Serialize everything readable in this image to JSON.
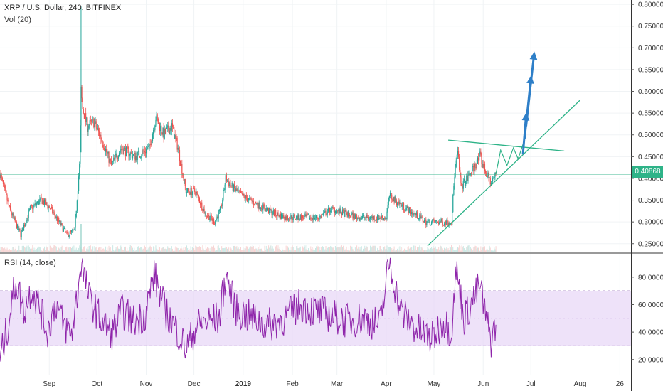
{
  "header": {
    "title": "XRP / U.S. Dollar, 240, BITFINEX",
    "vol_label": "Vol (20)",
    "rsi_label": "RSI (14, close)",
    "current_price": "0.40868"
  },
  "colors": {
    "candle_up": "#26a69a",
    "candle_down": "#ef5350",
    "trendline": "#2eb388",
    "projection": "#2e7fc8",
    "rsi_line": "#8e24aa",
    "rsi_band": "#e7d6f7"
  },
  "chart_data": [
    {
      "type": "candlestick",
      "title": "XRP / U.S. Dollar, 240, BITFINEX",
      "x_ticks": [
        "Sep",
        "Oct",
        "Nov",
        "Dec",
        "2019",
        "Feb",
        "Mar",
        "Apr",
        "May",
        "Jun",
        "Jul",
        "Aug",
        "26"
      ],
      "y_ticks": [
        "0.80000",
        "0.75000",
        "0.70000",
        "0.65000",
        "0.60000",
        "0.55000",
        "0.50000",
        "0.45000",
        "0.40000",
        "0.35000",
        "0.30000",
        "0.25000"
      ],
      "ylim": [
        0.23,
        0.81
      ],
      "last_price": 0.40868,
      "price_path": [
        {
          "x": "2018-08-01",
          "y": 0.41
        },
        {
          "x": "2018-08-07",
          "y": 0.33
        },
        {
          "x": "2018-08-14",
          "y": 0.27
        },
        {
          "x": "2018-08-20",
          "y": 0.33
        },
        {
          "x": "2018-08-27",
          "y": 0.35
        },
        {
          "x": "2018-09-02",
          "y": 0.33
        },
        {
          "x": "2018-09-07",
          "y": 0.3
        },
        {
          "x": "2018-09-12",
          "y": 0.27
        },
        {
          "x": "2018-09-17",
          "y": 0.28
        },
        {
          "x": "2018-09-20",
          "y": 0.43
        },
        {
          "x": "2018-09-21",
          "y": 0.6
        },
        {
          "x": "2018-09-22",
          "y": 0.56
        },
        {
          "x": "2018-09-25",
          "y": 0.52
        },
        {
          "x": "2018-09-29",
          "y": 0.53
        },
        {
          "x": "2018-10-04",
          "y": 0.49
        },
        {
          "x": "2018-10-10",
          "y": 0.43
        },
        {
          "x": "2018-10-16",
          "y": 0.47
        },
        {
          "x": "2018-10-25",
          "y": 0.45
        },
        {
          "x": "2018-11-03",
          "y": 0.47
        },
        {
          "x": "2018-11-07",
          "y": 0.54
        },
        {
          "x": "2018-11-12",
          "y": 0.5
        },
        {
          "x": "2018-11-17",
          "y": 0.52
        },
        {
          "x": "2018-11-21",
          "y": 0.47
        },
        {
          "x": "2018-11-26",
          "y": 0.37
        },
        {
          "x": "2018-12-02",
          "y": 0.37
        },
        {
          "x": "2018-12-08",
          "y": 0.32
        },
        {
          "x": "2018-12-14",
          "y": 0.3
        },
        {
          "x": "2018-12-18",
          "y": 0.33
        },
        {
          "x": "2018-12-21",
          "y": 0.4
        },
        {
          "x": "2018-12-25",
          "y": 0.38
        },
        {
          "x": "2018-12-31",
          "y": 0.36
        },
        {
          "x": "2019-01-10",
          "y": 0.34
        },
        {
          "x": "2019-01-20",
          "y": 0.32
        },
        {
          "x": "2019-01-28",
          "y": 0.31
        },
        {
          "x": "2019-02-08",
          "y": 0.31
        },
        {
          "x": "2019-02-18",
          "y": 0.31
        },
        {
          "x": "2019-02-25",
          "y": 0.33
        },
        {
          "x": "2019-03-05",
          "y": 0.32
        },
        {
          "x": "2019-03-15",
          "y": 0.31
        },
        {
          "x": "2019-03-25",
          "y": 0.31
        },
        {
          "x": "2019-04-01",
          "y": 0.31
        },
        {
          "x": "2019-04-03",
          "y": 0.36
        },
        {
          "x": "2019-04-10",
          "y": 0.34
        },
        {
          "x": "2019-04-18",
          "y": 0.32
        },
        {
          "x": "2019-04-26",
          "y": 0.3
        },
        {
          "x": "2019-05-05",
          "y": 0.3
        },
        {
          "x": "2019-05-12",
          "y": 0.3
        },
        {
          "x": "2019-05-14",
          "y": 0.41
        },
        {
          "x": "2019-05-16",
          "y": 0.46
        },
        {
          "x": "2019-05-18",
          "y": 0.38
        },
        {
          "x": "2019-05-22",
          "y": 0.4
        },
        {
          "x": "2019-05-27",
          "y": 0.43
        },
        {
          "x": "2019-05-30",
          "y": 0.45
        },
        {
          "x": "2019-06-03",
          "y": 0.41
        },
        {
          "x": "2019-06-06",
          "y": 0.39
        },
        {
          "x": "2019-06-09",
          "y": 0.40868
        }
      ],
      "volume_shown": true
    },
    {
      "type": "line",
      "title": "RSI (14, close)",
      "y_ticks": [
        "80.0000",
        "60.0000",
        "40.0000",
        "20.0000"
      ],
      "ylim": [
        9,
        97
      ],
      "band": [
        30,
        70
      ],
      "rsi_path": [
        {
          "x": "2018-08-01",
          "y": 20
        },
        {
          "x": "2018-08-06",
          "y": 45
        },
        {
          "x": "2018-08-11",
          "y": 78
        },
        {
          "x": "2018-08-16",
          "y": 55
        },
        {
          "x": "2018-08-21",
          "y": 72
        },
        {
          "x": "2018-08-26",
          "y": 58
        },
        {
          "x": "2018-08-31",
          "y": 40
        },
        {
          "x": "2018-09-05",
          "y": 62
        },
        {
          "x": "2018-09-10",
          "y": 45
        },
        {
          "x": "2018-09-15",
          "y": 38
        },
        {
          "x": "2018-09-19",
          "y": 70
        },
        {
          "x": "2018-09-21",
          "y": 92
        },
        {
          "x": "2018-09-26",
          "y": 65
        },
        {
          "x": "2018-10-03",
          "y": 50
        },
        {
          "x": "2018-10-10",
          "y": 38
        },
        {
          "x": "2018-10-17",
          "y": 55
        },
        {
          "x": "2018-10-24",
          "y": 48
        },
        {
          "x": "2018-10-31",
          "y": 52
        },
        {
          "x": "2018-11-06",
          "y": 82
        },
        {
          "x": "2018-11-13",
          "y": 55
        },
        {
          "x": "2018-11-20",
          "y": 42
        },
        {
          "x": "2018-11-26",
          "y": 28
        },
        {
          "x": "2018-12-03",
          "y": 45
        },
        {
          "x": "2018-12-10",
          "y": 48
        },
        {
          "x": "2018-12-17",
          "y": 50
        },
        {
          "x": "2018-12-21",
          "y": 82
        },
        {
          "x": "2018-12-28",
          "y": 55
        },
        {
          "x": "2019-01-07",
          "y": 50
        },
        {
          "x": "2019-01-17",
          "y": 45
        },
        {
          "x": "2019-01-27",
          "y": 50
        },
        {
          "x": "2019-02-06",
          "y": 60
        },
        {
          "x": "2019-02-16",
          "y": 55
        },
        {
          "x": "2019-02-26",
          "y": 52
        },
        {
          "x": "2019-03-08",
          "y": 48
        },
        {
          "x": "2019-03-18",
          "y": 50
        },
        {
          "x": "2019-03-28",
          "y": 45
        },
        {
          "x": "2019-04-03",
          "y": 92
        },
        {
          "x": "2019-04-10",
          "y": 55
        },
        {
          "x": "2019-04-20",
          "y": 42
        },
        {
          "x": "2019-04-30",
          "y": 35
        },
        {
          "x": "2019-05-07",
          "y": 48
        },
        {
          "x": "2019-05-12",
          "y": 40
        },
        {
          "x": "2019-05-15",
          "y": 86
        },
        {
          "x": "2019-05-20",
          "y": 50
        },
        {
          "x": "2019-05-25",
          "y": 62
        },
        {
          "x": "2019-05-30",
          "y": 74
        },
        {
          "x": "2019-06-03",
          "y": 48
        },
        {
          "x": "2019-06-06",
          "y": 34
        },
        {
          "x": "2019-06-09",
          "y": 46
        }
      ]
    }
  ]
}
